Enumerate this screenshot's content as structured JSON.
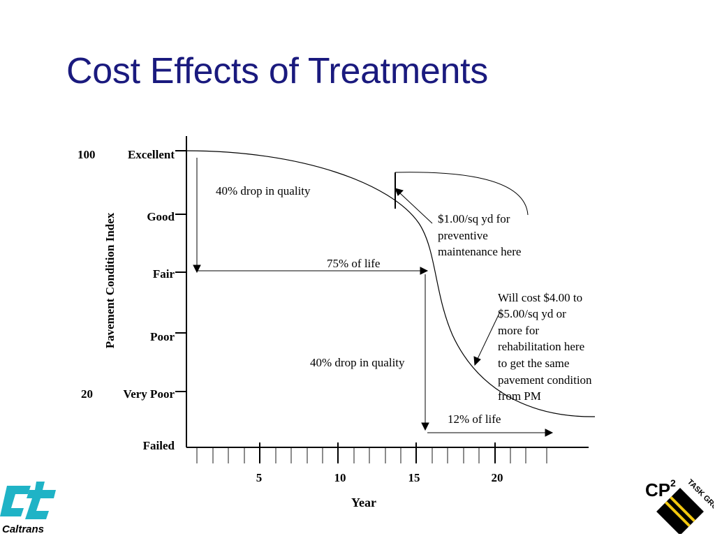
{
  "slide": {
    "title": "Cost Effects of Treatments"
  },
  "chart": {
    "y_axis_label": "Pavement Condition Index",
    "x_axis_label": "Year",
    "condition_levels": [
      "Excellent",
      "Good",
      "Fair",
      "Poor",
      "Very Poor",
      "Failed"
    ],
    "index_marks": [
      "100",
      "20"
    ],
    "year_ticks": [
      "5",
      "10",
      "15",
      "20"
    ],
    "annotations": {
      "drop_top": "40% drop in quality",
      "life_75": "75% of life",
      "drop_mid": "40% drop in quality",
      "life_12": "12% of life",
      "pm_cost": [
        "$1.00/sq yd for",
        "preventive",
        "maintenance here"
      ],
      "rehab_cost": [
        "Will cost $4.00 to",
        "$5.00/sq yd or",
        "more for",
        "rehabilitation here",
        "to get the same",
        "pavement condition",
        "from PM"
      ]
    }
  },
  "logos": {
    "caltrans_text": "Caltrans",
    "cp2_text": "CP",
    "cp2_superscript": "2",
    "task_group_text": "TASK GROUP"
  },
  "colors": {
    "title": "#1a1a7e",
    "caltrans_teal": "#1fb3c6",
    "stripe_yellow": "#f2c80f"
  }
}
